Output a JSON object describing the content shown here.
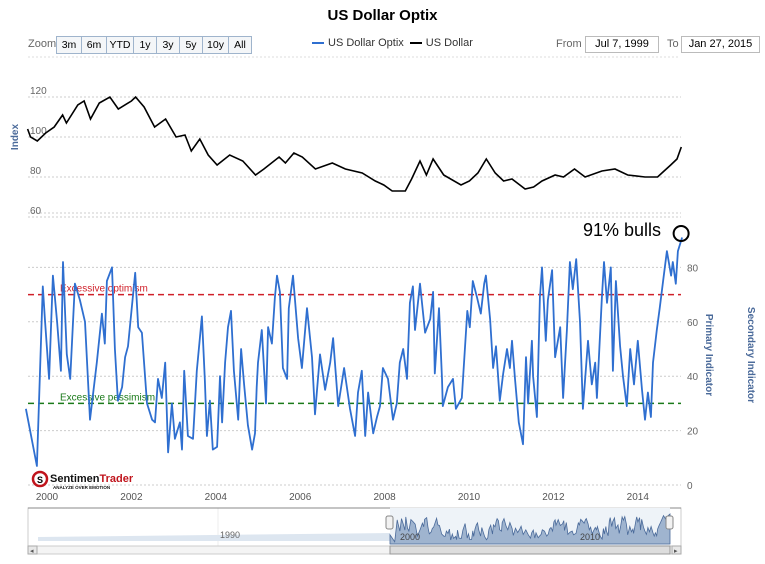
{
  "title": "US Dollar Optix",
  "toolbar": {
    "zoom_label": "Zoom",
    "zoom_buttons": [
      "3m",
      "6m",
      "YTD",
      "1y",
      "3y",
      "5y",
      "10y",
      "All"
    ],
    "from_label": "From",
    "from_value": "Jul 7, 1999",
    "to_label": "To",
    "to_value": "Jan 27, 2015"
  },
  "colors": {
    "optix": "#2f6fd0",
    "dollar": "#000000",
    "optimism": "#d0202a",
    "pessimism": "#1a7a1a"
  },
  "logo": {
    "name": "SentimenTrader",
    "tagline": "ANALYZE OVER EMOTION"
  },
  "navigator": {
    "labels": [
      "1990",
      "2000",
      "2010"
    ]
  },
  "chart_data": [
    {
      "type": "line",
      "pane": "upper",
      "ylabel": "Index",
      "yticks": [
        "120",
        "100",
        "80",
        "60"
      ],
      "ylim": [
        60,
        120
      ],
      "grid": true,
      "series": [
        {
          "name": "US Dollar",
          "points": [
            [
              1999.54,
              104
            ],
            [
              1999.61,
              100
            ],
            [
              1999.77,
              98
            ],
            [
              1999.97,
              102
            ],
            [
              2000.17,
              105
            ],
            [
              2000.37,
              111
            ],
            [
              2000.46,
              107
            ],
            [
              2000.73,
              116
            ],
            [
              2000.88,
              118
            ],
            [
              2001.03,
              109
            ],
            [
              2001.24,
              117
            ],
            [
              2001.49,
              120
            ],
            [
              2001.69,
              114
            ],
            [
              2002.0,
              118
            ],
            [
              2002.1,
              120
            ],
            [
              2002.3,
              115
            ],
            [
              2002.55,
              105
            ],
            [
              2002.81,
              109
            ],
            [
              2003.06,
              100
            ],
            [
              2003.27,
              101
            ],
            [
              2003.42,
              93
            ],
            [
              2003.62,
              99
            ],
            [
              2003.82,
              91
            ],
            [
              2004.03,
              86
            ],
            [
              2004.33,
              91
            ],
            [
              2004.64,
              88
            ],
            [
              2004.94,
              81
            ],
            [
              2005.14,
              84
            ],
            [
              2005.5,
              90
            ],
            [
              2005.65,
              87
            ],
            [
              2005.85,
              92
            ],
            [
              2006.05,
              90
            ],
            [
              2006.36,
              84
            ],
            [
              2006.76,
              87
            ],
            [
              2007.07,
              84
            ],
            [
              2007.47,
              82
            ],
            [
              2007.78,
              78
            ],
            [
              2007.98,
              76
            ],
            [
              2008.18,
              73
            ],
            [
              2008.49,
              73
            ],
            [
              2008.64,
              79
            ],
            [
              2008.84,
              88
            ],
            [
              2008.99,
              81
            ],
            [
              2009.15,
              89
            ],
            [
              2009.4,
              81
            ],
            [
              2009.81,
              76
            ],
            [
              2010.01,
              78
            ],
            [
              2010.21,
              82
            ],
            [
              2010.41,
              89
            ],
            [
              2010.62,
              82
            ],
            [
              2010.82,
              78
            ],
            [
              2011.02,
              79
            ],
            [
              2011.33,
              74
            ],
            [
              2011.53,
              75
            ],
            [
              2011.73,
              78
            ],
            [
              2012.04,
              81
            ],
            [
              2012.24,
              80
            ],
            [
              2012.5,
              84
            ],
            [
              2012.75,
              80
            ],
            [
              2013.15,
              83
            ],
            [
              2013.46,
              84
            ],
            [
              2013.76,
              81
            ],
            [
              2014.17,
              80
            ],
            [
              2014.47,
              80
            ],
            [
              2014.57,
              82
            ],
            [
              2014.78,
              86
            ],
            [
              2014.93,
              89
            ],
            [
              2015.03,
              95
            ]
          ]
        }
      ]
    },
    {
      "type": "line",
      "pane": "lower",
      "ylabel": "Primary Indicator",
      "y2label": "Secondary Indicator",
      "yticks": [
        "80",
        "60",
        "40",
        "20",
        "0"
      ],
      "ylim": [
        0,
        100
      ],
      "grid": true,
      "xticks": [
        "2000",
        "2002",
        "2004",
        "2006",
        "2008",
        "2010",
        "2012",
        "2014"
      ],
      "reference_lines": [
        {
          "label": "Excessive optimism",
          "value": 70
        },
        {
          "label": "Excessive pessimism",
          "value": 30
        }
      ],
      "annotation": {
        "text": "91% bulls",
        "x": 2015.05,
        "y": 91
      },
      "series": [
        {
          "name": "US Dollar Optix",
          "points": [
            [
              1999.5,
              28
            ],
            [
              1999.55,
              24
            ],
            [
              1999.76,
              7
            ],
            [
              1999.9,
              73
            ],
            [
              1999.95,
              61
            ],
            [
              2000.05,
              39
            ],
            [
              2000.14,
              77
            ],
            [
              2000.24,
              60
            ],
            [
              2000.33,
              42
            ],
            [
              2000.38,
              82
            ],
            [
              2000.47,
              48
            ],
            [
              2000.55,
              39
            ],
            [
              2000.66,
              74
            ],
            [
              2000.78,
              68
            ],
            [
              2000.9,
              60
            ],
            [
              2001.02,
              24
            ],
            [
              2001.18,
              45
            ],
            [
              2001.3,
              63
            ],
            [
              2001.37,
              52
            ],
            [
              2001.42,
              75
            ],
            [
              2001.54,
              80
            ],
            [
              2001.61,
              50
            ],
            [
              2001.68,
              31
            ],
            [
              2001.78,
              36
            ],
            [
              2001.85,
              47
            ],
            [
              2001.92,
              51
            ],
            [
              2002.09,
              78
            ],
            [
              2002.16,
              58
            ],
            [
              2002.25,
              56
            ],
            [
              2002.37,
              30
            ],
            [
              2002.49,
              24
            ],
            [
              2002.56,
              23
            ],
            [
              2002.63,
              39
            ],
            [
              2002.72,
              32
            ],
            [
              2002.8,
              45
            ],
            [
              2002.87,
              12
            ],
            [
              2002.96,
              30
            ],
            [
              2003.03,
              17
            ],
            [
              2003.15,
              23
            ],
            [
              2003.2,
              13
            ],
            [
              2003.25,
              42
            ],
            [
              2003.34,
              18
            ],
            [
              2003.46,
              17
            ],
            [
              2003.55,
              42
            ],
            [
              2003.67,
              62
            ],
            [
              2003.74,
              39
            ],
            [
              2003.79,
              18
            ],
            [
              2003.86,
              31
            ],
            [
              2003.93,
              13
            ],
            [
              2004.03,
              14
            ],
            [
              2004.1,
              40
            ],
            [
              2004.15,
              23
            ],
            [
              2004.22,
              45
            ],
            [
              2004.29,
              58
            ],
            [
              2004.36,
              64
            ],
            [
              2004.43,
              42
            ],
            [
              2004.53,
              24
            ],
            [
              2004.6,
              50
            ],
            [
              2004.67,
              37
            ],
            [
              2004.76,
              22
            ],
            [
              2004.86,
              13
            ],
            [
              2004.93,
              19
            ],
            [
              2004.97,
              36
            ],
            [
              2005.0,
              45
            ],
            [
              2005.09,
              57
            ],
            [
              2005.19,
              30
            ],
            [
              2005.24,
              58
            ],
            [
              2005.33,
              52
            ],
            [
              2005.4,
              69
            ],
            [
              2005.45,
              77
            ],
            [
              2005.52,
              71
            ],
            [
              2005.59,
              43
            ],
            [
              2005.69,
              39
            ],
            [
              2005.73,
              65
            ],
            [
              2005.83,
              77
            ],
            [
              2005.95,
              54
            ],
            [
              2006.04,
              43
            ],
            [
              2006.16,
              65
            ],
            [
              2006.28,
              47
            ],
            [
              2006.35,
              26
            ],
            [
              2006.47,
              48
            ],
            [
              2006.59,
              35
            ],
            [
              2006.71,
              45
            ],
            [
              2006.78,
              54
            ],
            [
              2006.9,
              29
            ],
            [
              2007.04,
              43
            ],
            [
              2007.18,
              28
            ],
            [
              2007.3,
              18
            ],
            [
              2007.37,
              34
            ],
            [
              2007.46,
              42
            ],
            [
              2007.54,
              18
            ],
            [
              2007.61,
              34
            ],
            [
              2007.73,
              19
            ],
            [
              2007.82,
              25
            ],
            [
              2007.89,
              29
            ],
            [
              2007.96,
              43
            ],
            [
              2008.08,
              39
            ],
            [
              2008.2,
              24
            ],
            [
              2008.29,
              30
            ],
            [
              2008.36,
              45
            ],
            [
              2008.44,
              50
            ],
            [
              2008.53,
              39
            ],
            [
              2008.6,
              67
            ],
            [
              2008.67,
              73
            ],
            [
              2008.72,
              57
            ],
            [
              2008.84,
              74
            ],
            [
              2008.96,
              56
            ],
            [
              2009.08,
              61
            ],
            [
              2009.15,
              71
            ],
            [
              2009.19,
              41
            ],
            [
              2009.29,
              65
            ],
            [
              2009.36,
              39
            ],
            [
              2009.38,
              29
            ],
            [
              2009.5,
              36
            ],
            [
              2009.62,
              39
            ],
            [
              2009.69,
              28
            ],
            [
              2009.83,
              32
            ],
            [
              2009.96,
              64
            ],
            [
              2010.02,
              58
            ],
            [
              2010.09,
              75
            ],
            [
              2010.19,
              69
            ],
            [
              2010.28,
              63
            ],
            [
              2010.36,
              74
            ],
            [
              2010.4,
              77
            ],
            [
              2010.5,
              61
            ],
            [
              2010.57,
              43
            ],
            [
              2010.64,
              51
            ],
            [
              2010.73,
              31
            ],
            [
              2010.81,
              41
            ],
            [
              2010.9,
              50
            ],
            [
              2010.97,
              43
            ],
            [
              2011.02,
              53
            ],
            [
              2011.09,
              39
            ],
            [
              2011.18,
              23
            ],
            [
              2011.28,
              15
            ],
            [
              2011.35,
              47
            ],
            [
              2011.4,
              30
            ],
            [
              2011.49,
              53
            ],
            [
              2011.52,
              40
            ],
            [
              2011.61,
              25
            ],
            [
              2011.68,
              69
            ],
            [
              2011.73,
              80
            ],
            [
              2011.82,
              53
            ],
            [
              2011.87,
              68
            ],
            [
              2011.97,
              79
            ],
            [
              2012.04,
              47
            ],
            [
              2012.16,
              58
            ],
            [
              2012.23,
              32
            ],
            [
              2012.32,
              57
            ],
            [
              2012.39,
              82
            ],
            [
              2012.46,
              72
            ],
            [
              2012.54,
              83
            ],
            [
              2012.63,
              60
            ],
            [
              2012.7,
              28
            ],
            [
              2012.82,
              53
            ],
            [
              2012.91,
              37
            ],
            [
              2012.99,
              45
            ],
            [
              2013.03,
              32
            ],
            [
              2013.15,
              69
            ],
            [
              2013.2,
              82
            ],
            [
              2013.27,
              67
            ],
            [
              2013.36,
              80
            ],
            [
              2013.41,
              42
            ],
            [
              2013.48,
              75
            ],
            [
              2013.58,
              51
            ],
            [
              2013.65,
              40
            ],
            [
              2013.74,
              29
            ],
            [
              2013.82,
              50
            ],
            [
              2013.91,
              37
            ],
            [
              2014.0,
              53
            ],
            [
              2014.1,
              35
            ],
            [
              2014.17,
              24
            ],
            [
              2014.24,
              34
            ],
            [
              2014.31,
              25
            ],
            [
              2014.36,
              45
            ],
            [
              2014.45,
              57
            ],
            [
              2014.52,
              65
            ],
            [
              2014.6,
              75
            ],
            [
              2014.69,
              86
            ],
            [
              2014.79,
              77
            ],
            [
              2014.83,
              82
            ],
            [
              2014.9,
              74
            ],
            [
              2014.95,
              86
            ],
            [
              2015.05,
              91
            ]
          ]
        }
      ]
    }
  ]
}
